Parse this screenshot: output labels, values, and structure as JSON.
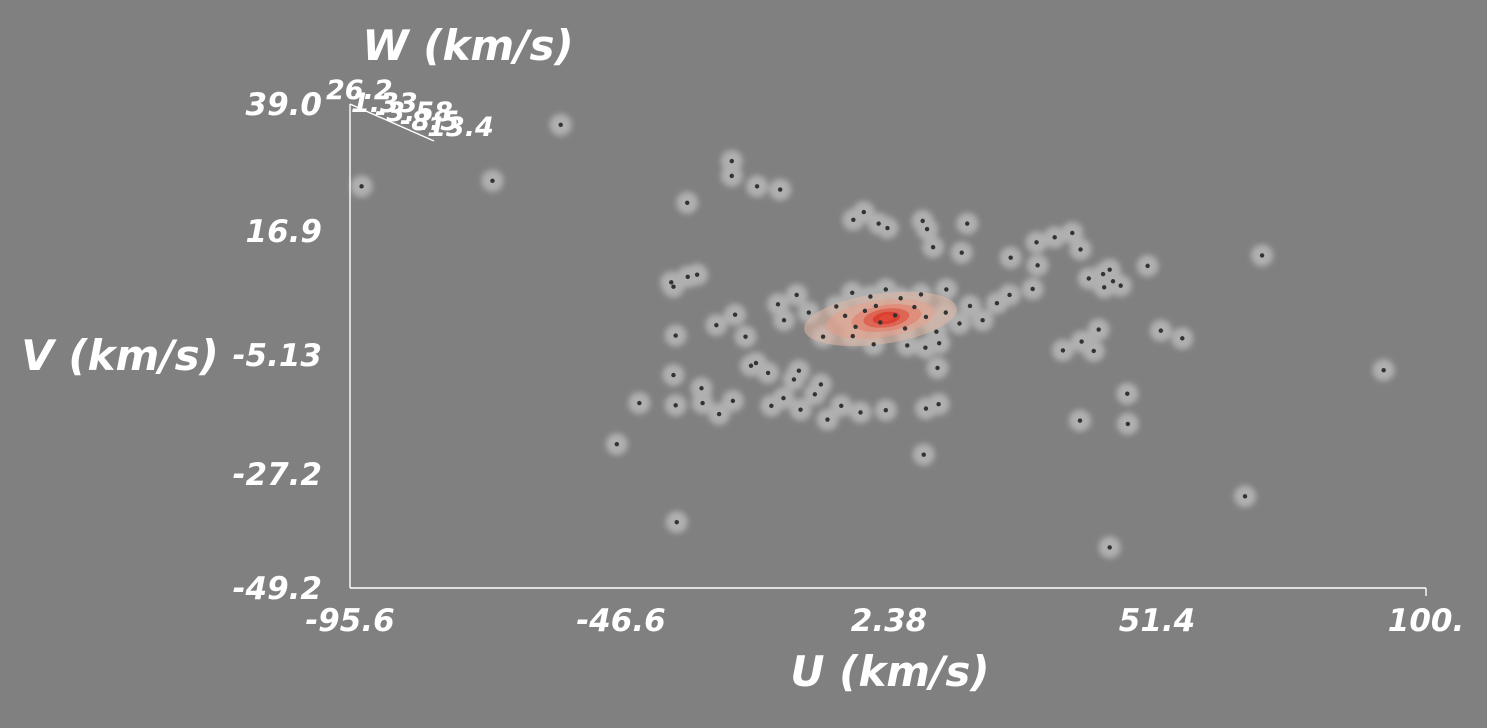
{
  "chart_data": {
    "type": "scatter",
    "title": "",
    "xlabel": "U (km/s)",
    "ylabel": "V (km/s)",
    "zlabel": "W (km/s)",
    "xlim": [
      -95.6,
      100
    ],
    "ylim": [
      -49.2,
      39.0
    ],
    "x_ticks": [
      "-95.6",
      "-46.6",
      "2.38",
      "51.4",
      "100."
    ],
    "y_ticks": [
      "39.0",
      "16.9",
      "-5.13",
      "-27.2",
      "-49.2"
    ],
    "z_ticks": [
      "26.2",
      "1.33",
      "-3.58",
      "-8.5",
      "-13.4"
    ],
    "grid": false,
    "legend": "none",
    "colors": {
      "background": "#808080",
      "text": "#ffffff",
      "points": "#333333",
      "isosurface": "#d8d8d8",
      "density_low": "#e6b3a0",
      "density_mid": "#e07e68",
      "density_high": "#d93a2c"
    },
    "density_peak": {
      "x": 1.9,
      "y": 0.0
    },
    "density_levels": [
      {
        "rx": 14.0,
        "ry": 4.6,
        "color": "#e2b8a6",
        "opacity": 0.55
      },
      {
        "rx": 10.0,
        "ry": 3.4,
        "color": "#e5a08c",
        "opacity": 0.55
      },
      {
        "rx": 6.4,
        "ry": 2.4,
        "color": "#e27d68",
        "opacity": 0.6
      },
      {
        "rx": 4.2,
        "ry": 1.7,
        "color": "#db5444",
        "opacity": 0.7
      },
      {
        "rx": 2.5,
        "ry": 1.1,
        "color": "#d93a2c",
        "opacity": 0.85
      },
      {
        "rx": 1.2,
        "ry": 0.6,
        "color": "#e04a38",
        "opacity": 0.95
      }
    ],
    "points": [
      {
        "x": -93.5,
        "y": 24.0
      },
      {
        "x": -69.7,
        "y": 25.0
      },
      {
        "x": -57.3,
        "y": 35.2
      },
      {
        "x": -34.3,
        "y": 21.0
      },
      {
        "x": -26.2,
        "y": 25.9
      },
      {
        "x": -26.2,
        "y": 28.6
      },
      {
        "x": -17.4,
        "y": 23.4
      },
      {
        "x": -47.1,
        "y": -23.0
      },
      {
        "x": -43.0,
        "y": -15.5
      },
      {
        "x": -37.2,
        "y": 6.5
      },
      {
        "x": -36.8,
        "y": 5.7
      },
      {
        "x": -34.2,
        "y": 7.5
      },
      {
        "x": -32.5,
        "y": 7.9
      },
      {
        "x": -36.4,
        "y": -3.2
      },
      {
        "x": -36.8,
        "y": -10.4
      },
      {
        "x": -36.4,
        "y": -15.9
      },
      {
        "x": -36.2,
        "y": -37.2
      },
      {
        "x": -29.0,
        "y": -1.3
      },
      {
        "x": -23.7,
        "y": -3.4
      },
      {
        "x": -21.8,
        "y": -8.2
      },
      {
        "x": -19.6,
        "y": -10.0
      },
      {
        "x": -19.0,
        "y": -16.0
      },
      {
        "x": -16.8,
        "y": -14.6
      },
      {
        "x": -14.9,
        "y": -11.2
      },
      {
        "x": -14.0,
        "y": -9.6
      },
      {
        "x": -13.7,
        "y": -16.7
      },
      {
        "x": -11.1,
        "y": -13.9
      },
      {
        "x": -10.0,
        "y": -12.1
      },
      {
        "x": -8.8,
        "y": -18.5
      },
      {
        "x": -6.3,
        "y": -16.0
      },
      {
        "x": -2.8,
        "y": -17.2
      },
      {
        "x": 1.8,
        "y": -16.8
      },
      {
        "x": -17.8,
        "y": 2.5
      },
      {
        "x": -16.7,
        "y": -0.4
      },
      {
        "x": -14.4,
        "y": 4.2
      },
      {
        "x": -12.2,
        "y": 1.0
      },
      {
        "x": -9.6,
        "y": -3.4
      },
      {
        "x": -7.2,
        "y": 2.1
      },
      {
        "x": -5.6,
        "y": 0.4
      },
      {
        "x": -3.7,
        "y": -1.6
      },
      {
        "x": -2.0,
        "y": 1.3
      },
      {
        "x": 0.0,
        "y": 2.2
      },
      {
        "x": 0.8,
        "y": -0.8
      },
      {
        "x": 3.5,
        "y": 0.5
      },
      {
        "x": 5.3,
        "y": -1.9
      },
      {
        "x": 7.0,
        "y": 2.0
      },
      {
        "x": 9.1,
        "y": 0.2
      },
      {
        "x": 11.0,
        "y": -2.5
      },
      {
        "x": 12.7,
        "y": 1.0
      },
      {
        "x": 15.2,
        "y": -1.0
      },
      {
        "x": 17.1,
        "y": 2.2
      },
      {
        "x": 19.4,
        "y": -0.4
      },
      {
        "x": 22.0,
        "y": 2.7
      },
      {
        "x": -1.0,
        "y": 3.9
      },
      {
        "x": 1.8,
        "y": 5.2
      },
      {
        "x": -4.3,
        "y": 4.6
      },
      {
        "x": 4.5,
        "y": 3.6
      },
      {
        "x": 8.2,
        "y": 4.3
      },
      {
        "x": 12.8,
        "y": 5.2
      },
      {
        "x": -4.2,
        "y": -3.3
      },
      {
        "x": -0.4,
        "y": -4.8
      },
      {
        "x": 5.7,
        "y": -5.0
      },
      {
        "x": 11.5,
        "y": -4.6
      },
      {
        "x": -2.2,
        "y": 19.3
      },
      {
        "x": -4.1,
        "y": 17.9
      },
      {
        "x": 0.5,
        "y": 17.2
      },
      {
        "x": 2.1,
        "y": 16.4
      },
      {
        "x": 8.5,
        "y": 17.7
      },
      {
        "x": 9.3,
        "y": 16.2
      },
      {
        "x": 10.4,
        "y": 12.9
      },
      {
        "x": 15.6,
        "y": 11.9
      },
      {
        "x": 16.6,
        "y": 17.2
      },
      {
        "x": 9.0,
        "y": -5.4
      },
      {
        "x": 11.2,
        "y": -9.1
      },
      {
        "x": 9.1,
        "y": -16.5
      },
      {
        "x": 11.4,
        "y": -15.7
      },
      {
        "x": 8.7,
        "y": -24.9
      },
      {
        "x": 24.3,
        "y": 4.2
      },
      {
        "x": 24.5,
        "y": 11.0
      },
      {
        "x": 29.2,
        "y": 13.8
      },
      {
        "x": 29.4,
        "y": 9.6
      },
      {
        "x": 32.5,
        "y": 14.7
      },
      {
        "x": 35.7,
        "y": 15.5
      },
      {
        "x": 37.2,
        "y": 12.5
      },
      {
        "x": 38.7,
        "y": 7.2
      },
      {
        "x": 28.5,
        "y": 5.3
      },
      {
        "x": 41.5,
        "y": 5.6
      },
      {
        "x": 41.3,
        "y": 8.0
      },
      {
        "x": 42.5,
        "y": 8.8
      },
      {
        "x": 43.1,
        "y": 6.7
      },
      {
        "x": 44.5,
        "y": 5.9
      },
      {
        "x": 40.5,
        "y": -2.1
      },
      {
        "x": 39.6,
        "y": -6.0
      },
      {
        "x": 37.4,
        "y": -4.3
      },
      {
        "x": 34.0,
        "y": -5.9
      },
      {
        "x": 37.1,
        "y": -18.7
      },
      {
        "x": 45.7,
        "y": -13.8
      },
      {
        "x": 45.8,
        "y": -19.3
      },
      {
        "x": 42.5,
        "y": -41.8
      },
      {
        "x": 49.4,
        "y": 9.5
      },
      {
        "x": 51.8,
        "y": -2.3
      },
      {
        "x": 55.7,
        "y": -3.7
      },
      {
        "x": 67.1,
        "y": -32.5
      },
      {
        "x": 70.2,
        "y": 11.4
      },
      {
        "x": 92.3,
        "y": -9.5
      },
      {
        "x": -31.7,
        "y": -12.8
      },
      {
        "x": -28.5,
        "y": -17.5
      },
      {
        "x": -26.0,
        "y": -15.1
      },
      {
        "x": -31.5,
        "y": -15.5
      },
      {
        "x": -22.7,
        "y": -8.7
      },
      {
        "x": -25.6,
        "y": 0.6
      },
      {
        "x": -21.6,
        "y": 24.0
      }
    ]
  }
}
